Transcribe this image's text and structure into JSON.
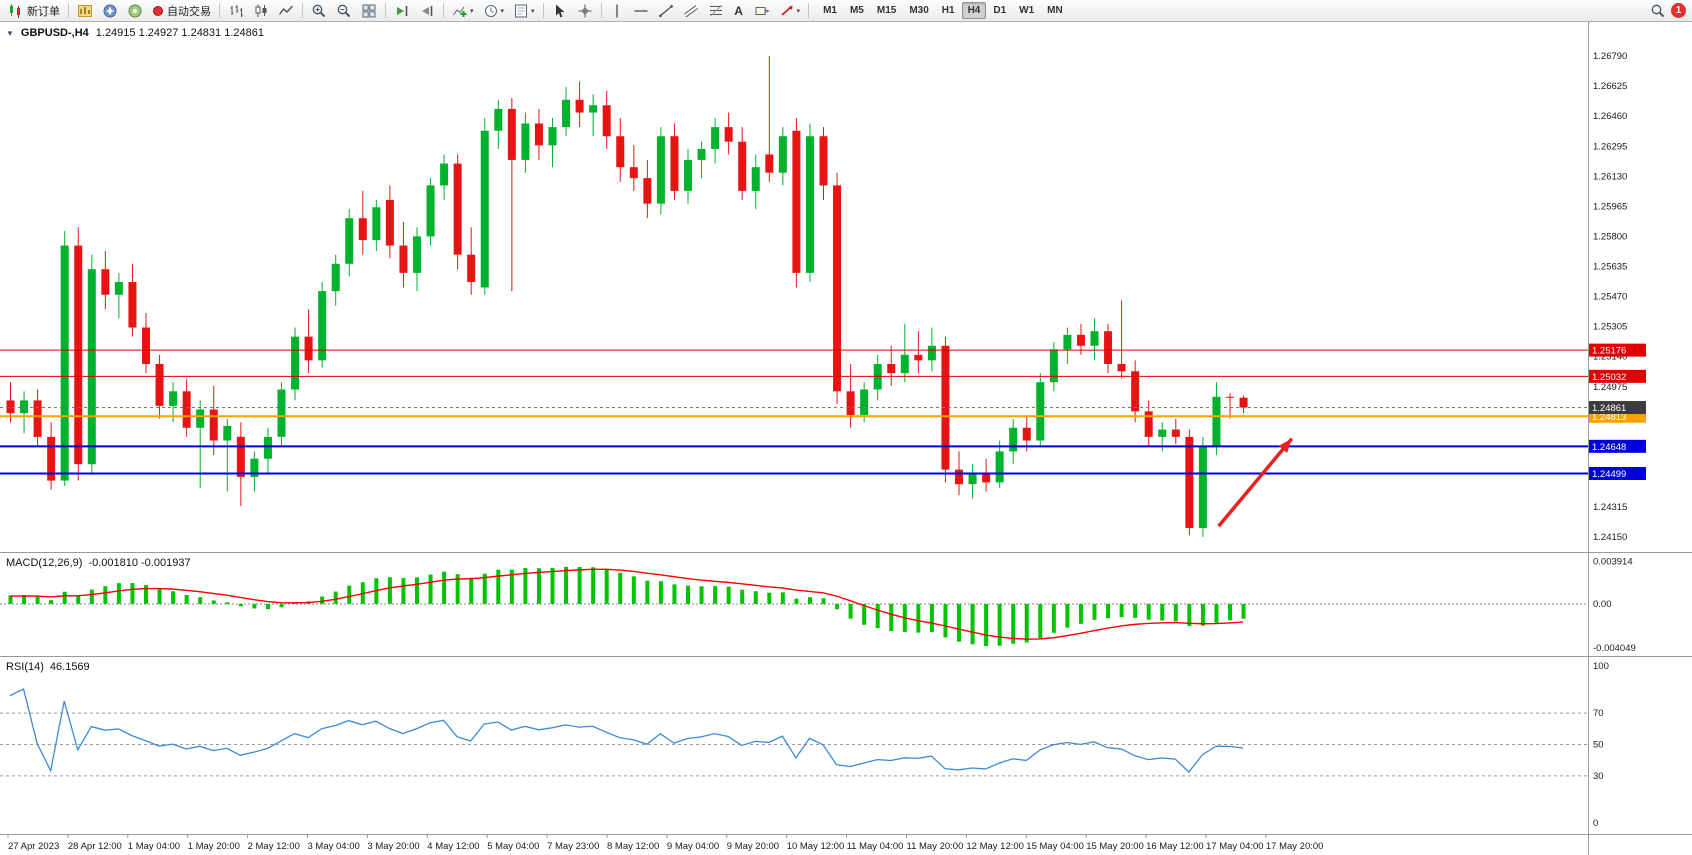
{
  "toolbar": {
    "new_order_label": "新订单",
    "auto_trading_label": "自动交易",
    "text_tool_label": "A",
    "timeframes": [
      "M1",
      "M5",
      "M15",
      "M30",
      "H1",
      "H4",
      "D1",
      "W1",
      "MN"
    ],
    "active_timeframe": "H4",
    "notification_count": "1"
  },
  "chart_title": {
    "symbol_period": "GBPUSD-,H4",
    "ohlc": "1.24915 1.24927 1.24831 1.24861"
  },
  "indicator_labels": {
    "macd_name": "MACD(12,26,9)",
    "macd_values": "-0.001810 -0.001937",
    "rsi_name": "RSI(14)",
    "rsi_value": "46.1569"
  },
  "chart_data": {
    "type": "candlestick",
    "symbol": "GBPUSD-",
    "timeframe": "H4",
    "ylim": [
      1.24068,
      1.26977
    ],
    "y_ticks": [
      "1.26790",
      "1.26625",
      "1.26460",
      "1.26295",
      "1.26130",
      "1.25965",
      "1.25800",
      "1.25635",
      "1.25470",
      "1.25305",
      "1.25140",
      "1.24975",
      "1.24810",
      "1.24645",
      "1.24480",
      "1.24315",
      "1.24150"
    ],
    "x_labels": [
      "27 Apr 2023",
      "28 Apr 12:00",
      "1 May 04:00",
      "1 May 20:00",
      "2 May 12:00",
      "3 May 04:00",
      "3 May 20:00",
      "4 May 12:00",
      "5 May 04:00",
      "7 May 23:00",
      "8 May 12:00",
      "9 May 04:00",
      "9 May 20:00",
      "10 May 12:00",
      "11 May 04:00",
      "11 May 20:00",
      "12 May 12:00",
      "15 May 04:00",
      "15 May 20:00",
      "16 May 12:00",
      "17 May 04:00",
      "17 May 20:00"
    ],
    "candles": [
      [
        1.249,
        1.25,
        1.2478,
        1.2483
      ],
      [
        1.2483,
        1.2495,
        1.2472,
        1.249
      ],
      [
        1.249,
        1.2496,
        1.2465,
        1.247
      ],
      [
        1.247,
        1.2478,
        1.2441,
        1.2446
      ],
      [
        1.2446,
        1.2583,
        1.2443,
        1.2575
      ],
      [
        1.2575,
        1.2585,
        1.2446,
        1.2455
      ],
      [
        1.2455,
        1.257,
        1.245,
        1.2562
      ],
      [
        1.2562,
        1.2572,
        1.254,
        1.2548
      ],
      [
        1.2548,
        1.256,
        1.2535,
        1.2555
      ],
      [
        1.2555,
        1.2565,
        1.2525,
        1.253
      ],
      [
        1.253,
        1.2538,
        1.2505,
        1.251
      ],
      [
        1.251,
        1.2515,
        1.248,
        1.2487
      ],
      [
        1.2487,
        1.25,
        1.2478,
        1.2495
      ],
      [
        1.2495,
        1.2502,
        1.247,
        1.2475
      ],
      [
        1.2475,
        1.249,
        1.2442,
        1.2485
      ],
      [
        1.2485,
        1.2498,
        1.246,
        1.2468
      ],
      [
        1.2468,
        1.248,
        1.244,
        1.2476
      ],
      [
        1.247,
        1.2478,
        1.2432,
        1.2448
      ],
      [
        1.2448,
        1.2462,
        1.244,
        1.2458
      ],
      [
        1.2458,
        1.2475,
        1.245,
        1.247
      ],
      [
        1.247,
        1.25,
        1.2465,
        1.2496
      ],
      [
        1.2496,
        1.253,
        1.249,
        1.2525
      ],
      [
        1.2525,
        1.254,
        1.2505,
        1.2512
      ],
      [
        1.2512,
        1.2555,
        1.2508,
        1.255
      ],
      [
        1.255,
        1.257,
        1.2542,
        1.2565
      ],
      [
        1.2565,
        1.2595,
        1.2558,
        1.259
      ],
      [
        1.259,
        1.2605,
        1.257,
        1.2578
      ],
      [
        1.2578,
        1.26,
        1.2572,
        1.2596
      ],
      [
        1.26,
        1.2608,
        1.2568,
        1.2575
      ],
      [
        1.2575,
        1.2588,
        1.2552,
        1.256
      ],
      [
        1.256,
        1.2585,
        1.255,
        1.258
      ],
      [
        1.258,
        1.2612,
        1.2575,
        1.2608
      ],
      [
        1.2608,
        1.2625,
        1.26,
        1.262
      ],
      [
        1.262,
        1.2625,
        1.2562,
        1.257
      ],
      [
        1.257,
        1.2585,
        1.2548,
        1.2555
      ],
      [
        1.2552,
        1.2645,
        1.2548,
        1.2638
      ],
      [
        1.2638,
        1.2655,
        1.2628,
        1.265
      ],
      [
        1.265,
        1.2656,
        1.255,
        1.2622
      ],
      [
        1.2622,
        1.2648,
        1.2615,
        1.2642
      ],
      [
        1.2642,
        1.265,
        1.2622,
        1.263
      ],
      [
        1.263,
        1.2645,
        1.2618,
        1.264
      ],
      [
        1.264,
        1.2662,
        1.2635,
        1.2655
      ],
      [
        1.2655,
        1.2665,
        1.264,
        1.2648
      ],
      [
        1.2648,
        1.2658,
        1.2635,
        1.2652
      ],
      [
        1.2652,
        1.266,
        1.2628,
        1.2635
      ],
      [
        1.2635,
        1.2645,
        1.261,
        1.2618
      ],
      [
        1.2618,
        1.263,
        1.2605,
        1.2612
      ],
      [
        1.2612,
        1.2622,
        1.259,
        1.2598
      ],
      [
        1.2598,
        1.264,
        1.2592,
        1.2635
      ],
      [
        1.2635,
        1.2642,
        1.26,
        1.2605
      ],
      [
        1.2605,
        1.2628,
        1.2598,
        1.2622
      ],
      [
        1.2622,
        1.2632,
        1.2612,
        1.2628
      ],
      [
        1.2628,
        1.2645,
        1.262,
        1.264
      ],
      [
        1.264,
        1.2648,
        1.2625,
        1.2632
      ],
      [
        1.2632,
        1.264,
        1.26,
        1.2605
      ],
      [
        1.2605,
        1.2625,
        1.2595,
        1.2618
      ],
      [
        1.2625,
        1.2679,
        1.261,
        1.2615
      ],
      [
        1.2615,
        1.264,
        1.2608,
        1.2635
      ],
      [
        1.2638,
        1.2645,
        1.2552,
        1.256
      ],
      [
        1.256,
        1.2642,
        1.2555,
        1.2635
      ],
      [
        1.2635,
        1.264,
        1.26,
        1.2608
      ],
      [
        1.2608,
        1.2615,
        1.2488,
        1.2495
      ],
      [
        1.2495,
        1.251,
        1.2475,
        1.2482
      ],
      [
        1.2482,
        1.25,
        1.2478,
        1.2496
      ],
      [
        1.2496,
        1.2515,
        1.249,
        1.251
      ],
      [
        1.251,
        1.252,
        1.2498,
        1.2505
      ],
      [
        1.2505,
        1.2532,
        1.25,
        1.2515
      ],
      [
        1.2515,
        1.2528,
        1.2505,
        1.2512
      ],
      [
        1.2512,
        1.253,
        1.2506,
        1.252
      ],
      [
        1.252,
        1.2525,
        1.2445,
        1.2452
      ],
      [
        1.2452,
        1.2462,
        1.2438,
        1.2444
      ],
      [
        1.2444,
        1.2455,
        1.2436,
        1.245
      ],
      [
        1.245,
        1.2458,
        1.244,
        1.2445
      ],
      [
        1.2445,
        1.2468,
        1.2442,
        1.2462
      ],
      [
        1.2462,
        1.248,
        1.2455,
        1.2475
      ],
      [
        1.2475,
        1.2482,
        1.2462,
        1.2468
      ],
      [
        1.2468,
        1.2505,
        1.2465,
        1.25
      ],
      [
        1.25,
        1.2522,
        1.2495,
        1.2518
      ],
      [
        1.2518,
        1.253,
        1.251,
        1.2526
      ],
      [
        1.2526,
        1.2532,
        1.2515,
        1.252
      ],
      [
        1.252,
        1.2535,
        1.2512,
        1.2528
      ],
      [
        1.2528,
        1.2532,
        1.2505,
        1.251
      ],
      [
        1.251,
        1.2545,
        1.2502,
        1.2506
      ],
      [
        1.2506,
        1.2512,
        1.2478,
        1.2484
      ],
      [
        1.2484,
        1.249,
        1.2465,
        1.247
      ],
      [
        1.247,
        1.2478,
        1.2462,
        1.2474
      ],
      [
        1.2474,
        1.248,
        1.2466,
        1.247
      ],
      [
        1.247,
        1.2474,
        1.2416,
        1.242
      ],
      [
        1.242,
        1.247,
        1.2415,
        1.2465
      ],
      [
        1.2465,
        1.25,
        1.246,
        1.2492
      ],
      [
        1.2492,
        1.2494,
        1.248,
        1.24915
      ],
      [
        1.24915,
        1.24927,
        1.24831,
        1.24861
      ]
    ],
    "levels": [
      {
        "price": 1.25176,
        "color": "#e00000",
        "label": "1.25176",
        "width": 1
      },
      {
        "price": 1.25032,
        "color": "#e00000",
        "label": "1.25032",
        "width": 1
      },
      {
        "price": 1.24813,
        "color": "#ffa000",
        "label": "1.24813",
        "width": 2
      },
      {
        "price": 1.24648,
        "color": "#0000dc",
        "label": "1.24648",
        "width": 2
      },
      {
        "price": 1.24499,
        "color": "#0000dc",
        "label": "1.24499",
        "width": 2
      }
    ],
    "current_price": {
      "value": 1.24861,
      "label": "1.24861",
      "badge_color": "#3c3c3c"
    },
    "arrow": {
      "x1_candle": 89.2,
      "y1_price": 1.2421,
      "x2_candle": 94.6,
      "y2_price": 1.2469,
      "color": "#e82020"
    },
    "colors": {
      "up": "#00b22c",
      "down": "#e81414",
      "macd_hist": "#00c400",
      "macd_signal": "#ff0000",
      "rsi_line": "#3d8bd4"
    },
    "macd_axis": [
      "0.003914",
      "0.00",
      "-0.004049"
    ],
    "rsi_axis": [
      "100",
      "70",
      "50",
      "30",
      "0"
    ],
    "rsi_levels": [
      70,
      50,
      30
    ]
  }
}
